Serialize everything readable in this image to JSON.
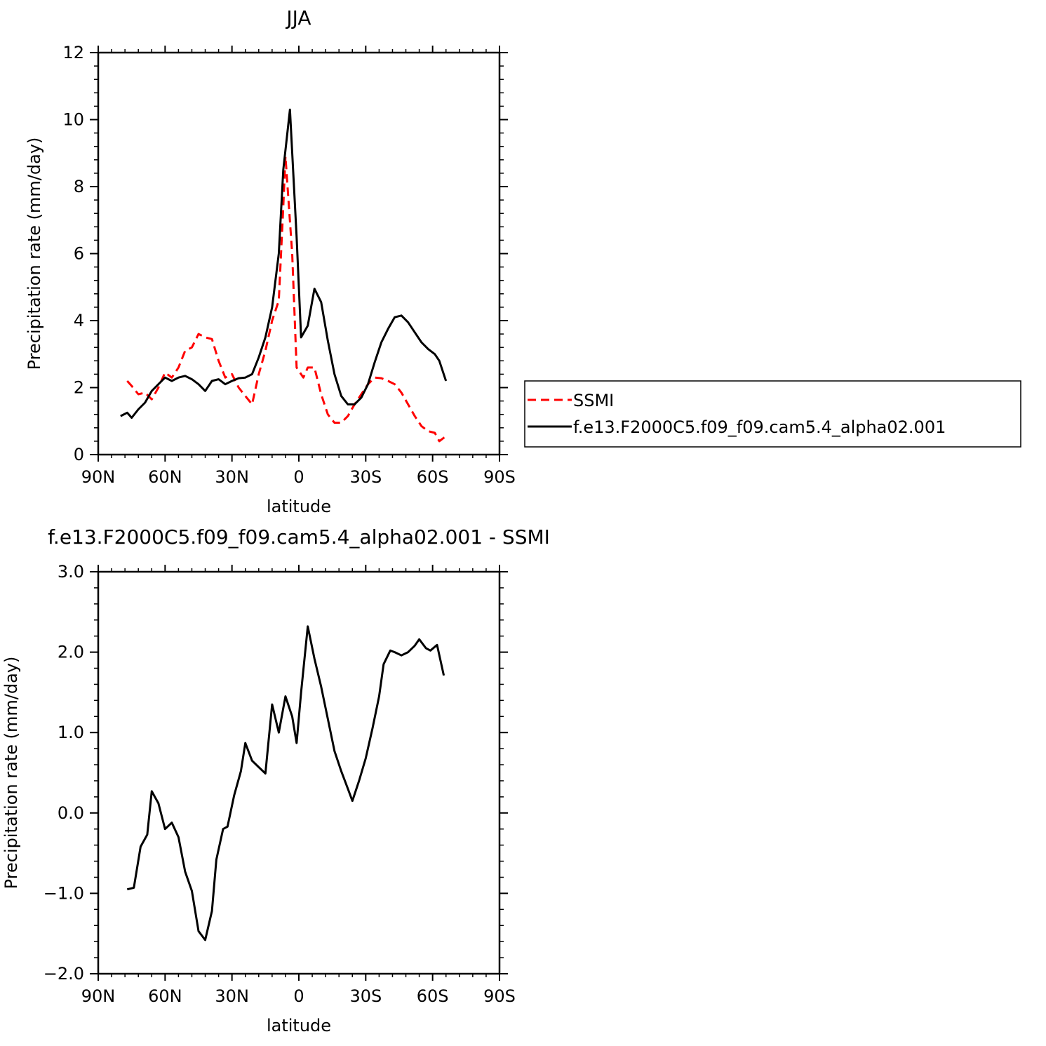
{
  "chart_data": [
    {
      "type": "line",
      "title": "JJA",
      "xlabel": "latitude",
      "ylabel": "Precipitation rate (mm/day)",
      "xlim": [
        -90,
        90
      ],
      "ylim": [
        0,
        12
      ],
      "xticks": [
        {
          "value": -90,
          "label": "90N"
        },
        {
          "value": -60,
          "label": "60N"
        },
        {
          "value": -30,
          "label": "30N"
        },
        {
          "value": 0,
          "label": "0"
        },
        {
          "value": 30,
          "label": "30S"
        },
        {
          "value": 60,
          "label": "60S"
        },
        {
          "value": 90,
          "label": "90S"
        }
      ],
      "yticks": [
        {
          "value": 0,
          "label": "0"
        },
        {
          "value": 2,
          "label": "2"
        },
        {
          "value": 4,
          "label": "4"
        },
        {
          "value": 6,
          "label": "6"
        },
        {
          "value": 8,
          "label": "8"
        },
        {
          "value": 10,
          "label": "10"
        },
        {
          "value": 12,
          "label": "12"
        }
      ],
      "legend": {
        "position": "right"
      },
      "series": [
        {
          "name": "SSMI",
          "color": "#ff0000",
          "style": "dashed",
          "x": [
            -77,
            -75,
            -72,
            -69,
            -66,
            -63,
            -60,
            -57,
            -54,
            -51,
            -48,
            -45,
            -42,
            -39,
            -36,
            -33,
            -30,
            -27,
            -24,
            -21,
            -18,
            -15,
            -12,
            -9,
            -7,
            -6,
            -3,
            -1,
            2,
            4,
            7,
            10,
            13,
            16,
            19,
            22,
            25,
            28,
            31,
            34,
            37,
            40,
            43,
            46,
            49,
            52,
            55,
            58,
            61,
            63,
            66
          ],
          "y": [
            2.2,
            2.05,
            1.8,
            1.85,
            1.65,
            2.0,
            2.45,
            2.3,
            2.6,
            3.1,
            3.2,
            3.6,
            3.5,
            3.45,
            2.8,
            2.3,
            2.4,
            2.0,
            1.75,
            1.5,
            2.4,
            3.1,
            4.0,
            4.6,
            7.4,
            8.9,
            6.0,
            2.6,
            2.3,
            2.6,
            2.6,
            1.8,
            1.2,
            0.95,
            0.95,
            1.15,
            1.5,
            1.8,
            2.1,
            2.3,
            2.28,
            2.2,
            2.1,
            1.85,
            1.5,
            1.15,
            0.85,
            0.7,
            0.65,
            0.4,
            0.55
          ]
        },
        {
          "name": "f.e13.F2000C5.f09_f09.cam5.4_alpha02.001",
          "color": "#000000",
          "style": "solid",
          "x": [
            -80,
            -77,
            -75,
            -72,
            -69,
            -66,
            -63,
            -60,
            -57,
            -54,
            -51,
            -48,
            -45,
            -42,
            -39,
            -36,
            -33,
            -30,
            -27,
            -24,
            -21,
            -18,
            -15,
            -12,
            -9,
            -7,
            -4,
            -1,
            1,
            4,
            7,
            10,
            13,
            16,
            19,
            22,
            25,
            28,
            31,
            34,
            37,
            40,
            43,
            46,
            49,
            52,
            55,
            58,
            61,
            63,
            66
          ],
          "y": [
            1.15,
            1.25,
            1.1,
            1.35,
            1.55,
            1.9,
            2.1,
            2.3,
            2.2,
            2.3,
            2.35,
            2.25,
            2.1,
            1.9,
            2.2,
            2.25,
            2.1,
            2.2,
            2.28,
            2.3,
            2.4,
            2.9,
            3.5,
            4.4,
            6.0,
            8.5,
            10.3,
            6.5,
            3.5,
            3.85,
            4.95,
            4.55,
            3.4,
            2.4,
            1.75,
            1.5,
            1.5,
            1.7,
            2.1,
            2.75,
            3.35,
            3.75,
            4.1,
            4.15,
            3.95,
            3.65,
            3.35,
            3.15,
            3.0,
            2.8,
            2.2
          ]
        }
      ]
    },
    {
      "type": "line",
      "title": "f.e13.F2000C5.f09_f09.cam5.4_alpha02.001 - SSMI",
      "xlabel": "latitude",
      "ylabel": "Precipitation rate (mm/day)",
      "xlim": [
        -90,
        90
      ],
      "ylim": [
        -2.0,
        3.0
      ],
      "xticks": [
        {
          "value": -90,
          "label": "90N"
        },
        {
          "value": -60,
          "label": "60N"
        },
        {
          "value": -30,
          "label": "30N"
        },
        {
          "value": 0,
          "label": "0"
        },
        {
          "value": 30,
          "label": "30S"
        },
        {
          "value": 60,
          "label": "60S"
        },
        {
          "value": 90,
          "label": "90S"
        }
      ],
      "yticks": [
        {
          "value": -2.0,
          "label": "−2.0"
        },
        {
          "value": -1.0,
          "label": "−1.0"
        },
        {
          "value": 0.0,
          "label": "0.0"
        },
        {
          "value": 1.0,
          "label": "1.0"
        },
        {
          "value": 2.0,
          "label": "2.0"
        },
        {
          "value": 3.0,
          "label": "3.0"
        }
      ],
      "series": [
        {
          "color": "#000000",
          "style": "solid",
          "x": [
            -77,
            -74,
            -71,
            -68,
            -66,
            -63,
            -60,
            -57,
            -54,
            -51,
            -48,
            -45,
            -42,
            -39,
            -37,
            -34,
            -32,
            -29,
            -26,
            -24,
            -21,
            -18,
            -15,
            -12,
            -9,
            -6,
            -3,
            -1,
            1,
            4,
            7,
            10,
            13,
            16,
            19,
            22,
            24,
            27,
            30,
            33,
            36,
            38,
            41,
            43,
            46,
            49,
            52,
            54,
            57,
            59,
            62,
            65
          ],
          "y": [
            -0.95,
            -0.93,
            -0.42,
            -0.27,
            0.27,
            0.12,
            -0.2,
            -0.12,
            -0.3,
            -0.73,
            -0.97,
            -1.47,
            -1.58,
            -1.22,
            -0.58,
            -0.2,
            -0.17,
            0.22,
            0.52,
            0.87,
            0.65,
            0.57,
            0.49,
            1.35,
            1.0,
            1.45,
            1.2,
            0.87,
            1.5,
            2.32,
            1.92,
            1.57,
            1.17,
            0.77,
            0.52,
            0.3,
            0.15,
            0.4,
            0.68,
            1.05,
            1.45,
            1.85,
            2.02,
            2.0,
            1.96,
            2.0,
            2.08,
            2.16,
            2.05,
            2.02,
            2.09,
            1.71
          ]
        }
      ]
    }
  ]
}
